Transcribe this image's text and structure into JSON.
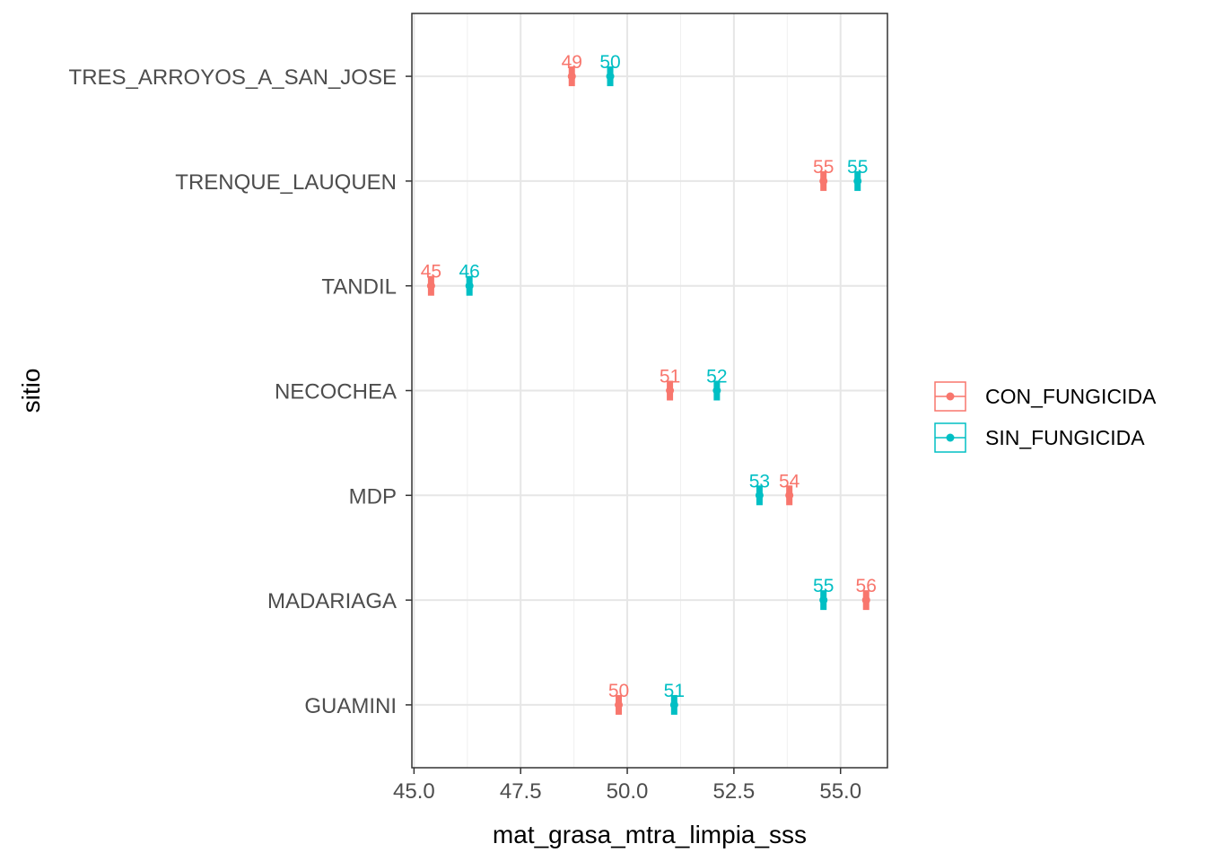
{
  "chart_data": {
    "type": "scatter",
    "xlabel": "mat_grasa_mtra_limpia_sss",
    "ylabel": "sitio",
    "xlim": [
      44.95,
      56.1
    ],
    "x_ticks": [
      45.0,
      47.5,
      50.0,
      52.5,
      55.0
    ],
    "x_tick_labels": [
      "45.0",
      "47.5",
      "50.0",
      "52.5",
      "55.0"
    ],
    "categories": [
      "GUAMINI",
      "MADARIAGA",
      "MDP",
      "NECOCHEA",
      "TANDIL",
      "TRENQUE_LAUQUEN",
      "TRES_ARROYOS_A_SAN_JOSE"
    ],
    "grid": true,
    "legend_position": "right",
    "series": [
      {
        "name": "CON_FUNGICIDA",
        "color": "#F8766D",
        "values": [
          49.8,
          55.6,
          53.8,
          51.0,
          45.4,
          54.6,
          48.7
        ],
        "labels": [
          "50",
          "56",
          "54",
          "51",
          "45",
          "55",
          "49"
        ]
      },
      {
        "name": "SIN_FUNGICIDA",
        "color": "#00BFC4",
        "values": [
          51.1,
          54.6,
          53.1,
          52.1,
          46.3,
          55.4,
          49.6
        ],
        "labels": [
          "51",
          "55",
          "53",
          "52",
          "46",
          "55",
          "50"
        ]
      }
    ]
  }
}
